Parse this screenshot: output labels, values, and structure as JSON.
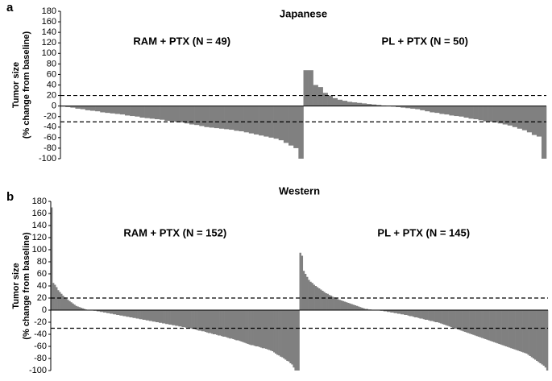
{
  "chart_data": [
    {
      "type": "bar",
      "panel_label": "a",
      "title": "Japanese",
      "ylabel": [
        "Tumor size",
        "(% change from baseline)"
      ],
      "ylim": [
        -100,
        180
      ],
      "yticks": [
        -100,
        -80,
        -60,
        -40,
        -20,
        0,
        20,
        40,
        60,
        80,
        100,
        120,
        140,
        160,
        180
      ],
      "reference_lines": [
        20,
        -30
      ],
      "series": [
        {
          "name": "RAM + PTX (N = 49)",
          "color": "#808080",
          "values": [
            -1,
            -2,
            -3,
            -5,
            -6,
            -8,
            -9,
            -10,
            -12,
            -13,
            -14,
            -15,
            -16,
            -18,
            -19,
            -20,
            -22,
            -23,
            -24,
            -25,
            -26,
            -28,
            -29,
            -30,
            -31,
            -33,
            -35,
            -36,
            -38,
            -40,
            -41,
            -42,
            -43,
            -44,
            -45,
            -47,
            -48,
            -50,
            -52,
            -54,
            -56,
            -58,
            -60,
            -62,
            -65,
            -70,
            -75,
            -80,
            -100
          ]
        },
        {
          "name": "PL + PTX (N = 50)",
          "color": "#808080",
          "values": [
            68,
            68,
            40,
            36,
            25,
            20,
            15,
            12,
            10,
            8,
            7,
            6,
            5,
            4,
            3,
            2,
            1,
            0,
            -1,
            -2,
            -3,
            -4,
            -5,
            -6,
            -8,
            -10,
            -12,
            -13,
            -15,
            -16,
            -18,
            -19,
            -20,
            -22,
            -24,
            -25,
            -27,
            -29,
            -30,
            -31,
            -33,
            -35,
            -37,
            -40,
            -43,
            -46,
            -50,
            -55,
            -58,
            -100
          ]
        }
      ]
    },
    {
      "type": "bar",
      "panel_label": "b",
      "title": "Western",
      "ylabel": [
        "Tumor size",
        "(% change from baseline)"
      ],
      "ylim": [
        -100,
        180
      ],
      "yticks": [
        -100,
        -80,
        -60,
        -40,
        -20,
        0,
        20,
        40,
        60,
        80,
        100,
        120,
        140,
        160,
        180
      ],
      "reference_lines": [
        20,
        -30
      ],
      "series": [
        {
          "name": "RAM + PTX (N = 152)",
          "color": "#808080",
          "values": [
            170,
            45,
            42,
            38,
            33,
            30,
            27,
            24,
            21,
            19,
            17,
            15,
            13,
            11,
            9,
            7,
            6,
            5,
            4,
            3,
            2,
            1,
            0,
            0,
            0,
            0,
            -1,
            -1,
            -2,
            -2,
            -3,
            -3,
            -4,
            -4,
            -5,
            -5,
            -6,
            -6,
            -7,
            -7,
            -8,
            -8,
            -9,
            -9,
            -10,
            -10,
            -11,
            -11,
            -12,
            -12,
            -13,
            -13,
            -14,
            -14,
            -15,
            -15,
            -16,
            -16,
            -17,
            -17,
            -18,
            -18,
            -19,
            -19,
            -20,
            -20,
            -21,
            -21,
            -22,
            -22,
            -23,
            -23,
            -24,
            -24,
            -25,
            -25,
            -26,
            -26,
            -27,
            -27,
            -28,
            -28,
            -29,
            -29,
            -30,
            -30,
            -31,
            -31,
            -32,
            -33,
            -34,
            -34,
            -35,
            -35,
            -36,
            -37,
            -38,
            -38,
            -39,
            -40,
            -40,
            -41,
            -42,
            -42,
            -43,
            -44,
            -44,
            -45,
            -46,
            -47,
            -47,
            -48,
            -49,
            -50,
            -50,
            -51,
            -52,
            -53,
            -54,
            -55,
            -56,
            -57,
            -58,
            -58,
            -59,
            -60,
            -60,
            -61,
            -62,
            -63,
            -63,
            -64,
            -65,
            -66,
            -67,
            -68,
            -70,
            -72,
            -74,
            -75,
            -77,
            -78,
            -80,
            -82,
            -84,
            -85,
            -88,
            -90,
            -95,
            -100,
            -100,
            -100
          ]
        },
        {
          "name": "PL + PTX (N = 145)",
          "color": "#808080",
          "values": [
            95,
            90,
            65,
            60,
            55,
            50,
            47,
            45,
            42,
            40,
            38,
            36,
            34,
            32,
            30,
            28,
            27,
            25,
            24,
            22,
            21,
            20,
            18,
            17,
            16,
            15,
            14,
            13,
            12,
            11,
            10,
            9,
            8,
            7,
            6,
            5,
            4,
            3,
            2,
            2,
            1,
            1,
            0,
            0,
            0,
            0,
            0,
            -1,
            -1,
            -2,
            -2,
            -3,
            -3,
            -4,
            -4,
            -5,
            -5,
            -6,
            -6,
            -7,
            -7,
            -8,
            -8,
            -9,
            -10,
            -10,
            -11,
            -12,
            -12,
            -13,
            -14,
            -14,
            -15,
            -16,
            -16,
            -17,
            -18,
            -18,
            -19,
            -20,
            -20,
            -21,
            -22,
            -23,
            -24,
            -25,
            -26,
            -27,
            -28,
            -29,
            -30,
            -31,
            -32,
            -33,
            -34,
            -35,
            -36,
            -37,
            -38,
            -39,
            -40,
            -41,
            -42,
            -43,
            -44,
            -45,
            -46,
            -47,
            -48,
            -49,
            -50,
            -51,
            -52,
            -53,
            -54,
            -55,
            -56,
            -57,
            -58,
            -59,
            -60,
            -61,
            -62,
            -63,
            -64,
            -65,
            -66,
            -67,
            -68,
            -69,
            -70,
            -71,
            -72,
            -74,
            -76,
            -78,
            -80,
            -82,
            -84,
            -86,
            -88,
            -90,
            -92,
            -95,
            -100
          ]
        }
      ]
    }
  ]
}
